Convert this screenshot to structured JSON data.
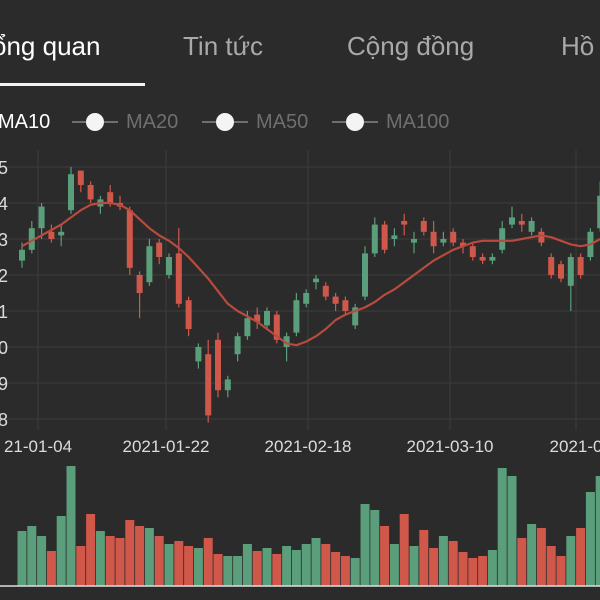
{
  "tabs": [
    {
      "label": "ổng quan",
      "active": true
    },
    {
      "label": "Tin tức",
      "active": false
    },
    {
      "label": "Cộng đồng",
      "active": false
    },
    {
      "label": "Hồ",
      "active": false
    }
  ],
  "legend": [
    "MA10",
    "MA20",
    "MA50",
    "MA100"
  ],
  "colors": {
    "background": "#2b2b2b",
    "up": "#5a9e7b",
    "down": "#d0584a",
    "ma10": "#b84a3e",
    "grid": "#3c3c3c",
    "axis_text": "#dcdcdc"
  },
  "chart_data": {
    "type": "candlestick",
    "y_ticks": [
      "5",
      "4",
      "3",
      "2",
      "1",
      "0",
      "9",
      "8"
    ],
    "x_ticks": [
      "21-01-04",
      "2021-01-22",
      "2021-02-18",
      "2021-03-10",
      "2021-0"
    ],
    "candles": [
      {
        "o": 2.4,
        "c": 2.7,
        "h": 2.9,
        "l": 2.2
      },
      {
        "o": 2.7,
        "c": 3.3,
        "h": 3.5,
        "l": 2.6
      },
      {
        "o": 3.3,
        "c": 3.9,
        "h": 4.0,
        "l": 3.0
      },
      {
        "o": 3.2,
        "c": 3.0,
        "h": 3.4,
        "l": 2.9
      },
      {
        "o": 3.1,
        "c": 3.2,
        "h": 3.4,
        "l": 2.8
      },
      {
        "o": 3.8,
        "c": 4.8,
        "h": 5.0,
        "l": 3.7
      },
      {
        "o": 4.9,
        "c": 4.5,
        "h": 4.9,
        "l": 4.3
      },
      {
        "o": 4.5,
        "c": 4.1,
        "h": 4.6,
        "l": 4.0
      },
      {
        "o": 3.9,
        "c": 4.1,
        "h": 4.2,
        "l": 3.7
      },
      {
        "o": 4.3,
        "c": 4.0,
        "h": 4.5,
        "l": 3.9
      },
      {
        "o": 4.0,
        "c": 3.9,
        "h": 4.2,
        "l": 3.8
      },
      {
        "o": 3.8,
        "c": 2.2,
        "h": 3.9,
        "l": 2.0
      },
      {
        "o": 2.0,
        "c": 1.5,
        "h": 2.1,
        "l": 0.8
      },
      {
        "o": 1.8,
        "c": 2.8,
        "h": 3.0,
        "l": 1.7
      },
      {
        "o": 2.9,
        "c": 2.5,
        "h": 3.0,
        "l": 2.3
      },
      {
        "o": 2.0,
        "c": 2.5,
        "h": 2.6,
        "l": 1.9
      },
      {
        "o": 2.6,
        "c": 1.2,
        "h": 3.3,
        "l": 1.1
      },
      {
        "o": 1.3,
        "c": 0.5,
        "h": 1.4,
        "l": 0.3
      },
      {
        "o": -0.4,
        "c": 0.0,
        "h": 0.1,
        "l": -0.6
      },
      {
        "o": -0.2,
        "c": -1.9,
        "h": 0.2,
        "l": -2.1
      },
      {
        "o": 0.2,
        "c": -1.2,
        "h": 0.4,
        "l": -1.4
      },
      {
        "o": -1.2,
        "c": -0.9,
        "h": -0.8,
        "l": -1.4
      },
      {
        "o": -0.2,
        "c": 0.3,
        "h": 0.4,
        "l": -0.4
      },
      {
        "o": 0.3,
        "c": 0.8,
        "h": 1.0,
        "l": 0.2
      },
      {
        "o": 0.9,
        "c": 0.7,
        "h": 1.1,
        "l": 0.5
      },
      {
        "o": 0.6,
        "c": 1.0,
        "h": 1.1,
        "l": 0.5
      },
      {
        "o": 0.9,
        "c": 0.2,
        "h": 1.0,
        "l": 0.1
      },
      {
        "o": 0.0,
        "c": 0.3,
        "h": 0.4,
        "l": -0.4
      },
      {
        "o": 0.4,
        "c": 1.3,
        "h": 1.5,
        "l": 0.3
      },
      {
        "o": 1.2,
        "c": 1.5,
        "h": 1.6,
        "l": 1.1
      },
      {
        "o": 1.8,
        "c": 1.9,
        "h": 2.0,
        "l": 1.6
      },
      {
        "o": 1.7,
        "c": 1.4,
        "h": 1.8,
        "l": 1.3
      },
      {
        "o": 1.4,
        "c": 1.2,
        "h": 1.5,
        "l": 1.0
      },
      {
        "o": 1.3,
        "c": 1.0,
        "h": 1.4,
        "l": 0.9
      },
      {
        "o": 0.6,
        "c": 1.1,
        "h": 1.2,
        "l": 0.5
      },
      {
        "o": 1.4,
        "c": 2.6,
        "h": 2.8,
        "l": 1.3
      },
      {
        "o": 2.6,
        "c": 3.4,
        "h": 3.6,
        "l": 2.5
      },
      {
        "o": 3.4,
        "c": 2.7,
        "h": 3.5,
        "l": 2.6
      },
      {
        "o": 3.0,
        "c": 3.1,
        "h": 3.3,
        "l": 2.8
      },
      {
        "o": 3.5,
        "c": 3.4,
        "h": 3.7,
        "l": 3.1
      },
      {
        "o": 2.9,
        "c": 3.0,
        "h": 3.2,
        "l": 2.6
      },
      {
        "o": 3.5,
        "c": 3.2,
        "h": 3.6,
        "l": 3.1
      },
      {
        "o": 3.2,
        "c": 2.8,
        "h": 3.5,
        "l": 2.6
      },
      {
        "o": 2.9,
        "c": 3.0,
        "h": 3.2,
        "l": 2.8
      },
      {
        "o": 3.2,
        "c": 2.9,
        "h": 3.3,
        "l": 2.8
      },
      {
        "o": 2.9,
        "c": 2.8,
        "h": 3.0,
        "l": 2.6
      },
      {
        "o": 2.8,
        "c": 2.5,
        "h": 2.9,
        "l": 2.4
      },
      {
        "o": 2.5,
        "c": 2.4,
        "h": 2.6,
        "l": 2.3
      },
      {
        "o": 2.4,
        "c": 2.5,
        "h": 2.6,
        "l": 2.3
      },
      {
        "o": 2.7,
        "c": 3.3,
        "h": 3.5,
        "l": 2.6
      },
      {
        "o": 3.4,
        "c": 3.6,
        "h": 3.9,
        "l": 3.3
      },
      {
        "o": 3.5,
        "c": 3.4,
        "h": 3.7,
        "l": 3.2
      },
      {
        "o": 3.2,
        "c": 3.5,
        "h": 3.6,
        "l": 3.1
      },
      {
        "o": 3.2,
        "c": 2.9,
        "h": 3.3,
        "l": 2.8
      },
      {
        "o": 2.5,
        "c": 2.0,
        "h": 2.6,
        "l": 1.9
      },
      {
        "o": 2.3,
        "c": 1.9,
        "h": 2.4,
        "l": 1.8
      },
      {
        "o": 1.7,
        "c": 2.5,
        "h": 2.6,
        "l": 1.0
      },
      {
        "o": 2.5,
        "c": 2.0,
        "h": 2.6,
        "l": 1.9
      },
      {
        "o": 2.5,
        "c": 3.2,
        "h": 3.3,
        "l": 2.4
      },
      {
        "o": 3.3,
        "c": 4.2,
        "h": 4.6,
        "l": 3.2
      }
    ],
    "ma10": [
      2.8,
      2.95,
      3.1,
      3.25,
      3.4,
      3.6,
      3.8,
      3.95,
      4.0,
      4.0,
      3.95,
      3.8,
      3.55,
      3.3,
      3.1,
      2.95,
      2.75,
      2.5,
      2.2,
      1.9,
      1.55,
      1.2,
      1.0,
      0.85,
      0.7,
      0.5,
      0.3,
      0.1,
      0.05,
      0.15,
      0.3,
      0.5,
      0.75,
      0.9,
      1.0,
      1.1,
      1.25,
      1.45,
      1.6,
      1.8,
      2.0,
      2.2,
      2.4,
      2.55,
      2.7,
      2.8,
      2.9,
      2.95,
      2.95,
      2.95,
      2.95,
      3.0,
      3.05,
      3.1,
      3.05,
      2.95,
      2.85,
      2.8,
      2.85,
      3.0
    ],
    "volume": [
      55,
      60,
      50,
      35,
      70,
      120,
      40,
      72,
      55,
      50,
      48,
      66,
      60,
      58,
      50,
      42,
      45,
      40,
      38,
      48,
      32,
      30,
      30,
      42,
      35,
      38,
      32,
      40,
      36,
      42,
      48,
      42,
      34,
      30,
      28,
      82,
      76,
      60,
      42,
      72,
      40,
      56,
      38,
      50,
      45,
      34,
      28,
      30,
      36,
      118,
      110,
      48,
      62,
      58,
      40,
      30,
      50,
      58,
      94,
      110
    ]
  }
}
